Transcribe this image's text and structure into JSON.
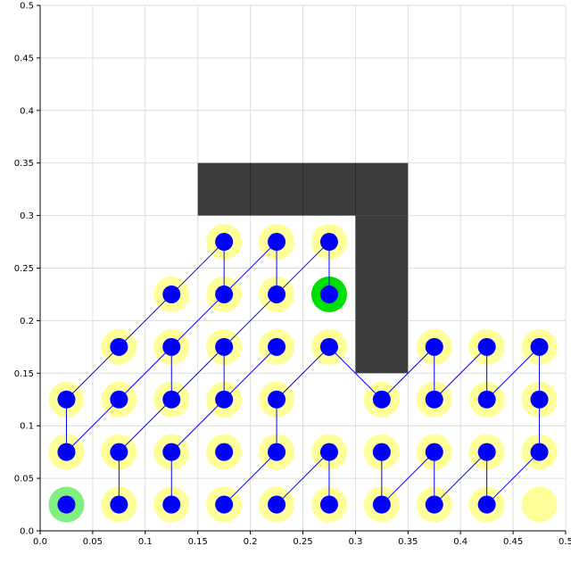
{
  "colors": {
    "obstacle": "#3c3c3c",
    "halo": "#ffff99",
    "node": "#0000ff",
    "edge": "#0000ff",
    "start": "#80ee80",
    "goal": "#00e000",
    "grid": "#dcdcdc"
  },
  "chart_data": {
    "type": "scatter",
    "title": "",
    "xlabel": "",
    "ylabel": "",
    "xlim": [
      0,
      0.5
    ],
    "ylim": [
      0,
      0.5
    ],
    "grid": true,
    "x_ticks": [
      "0.0",
      "0.05",
      "0.1",
      "0.15",
      "0.2",
      "0.25",
      "0.3",
      "0.35",
      "0.4",
      "0.45",
      "0.5"
    ],
    "y_ticks": [
      "0.0",
      "0.05",
      "0.1",
      "0.15",
      "0.2",
      "0.25",
      "0.3",
      "0.35",
      "0.4",
      "0.45",
      "0.5"
    ],
    "x_tick_values": [
      0,
      0.05,
      0.1,
      0.15,
      0.2,
      0.25,
      0.3,
      0.35,
      0.4,
      0.45,
      0.5
    ],
    "y_tick_values": [
      0,
      0.05,
      0.1,
      0.15,
      0.2,
      0.25,
      0.3,
      0.35,
      0.4,
      0.45,
      0.5
    ],
    "obstacles": [
      {
        "x0": 0.15,
        "y0": 0.3,
        "x1": 0.35,
        "y1": 0.35
      },
      {
        "x0": 0.3,
        "y0": 0.15,
        "x1": 0.35,
        "y1": 0.3
      }
    ],
    "halos": [
      [
        0.075,
        0.025
      ],
      [
        0.125,
        0.025
      ],
      [
        0.175,
        0.025
      ],
      [
        0.225,
        0.025
      ],
      [
        0.275,
        0.025
      ],
      [
        0.325,
        0.025
      ],
      [
        0.375,
        0.025
      ],
      [
        0.425,
        0.025
      ],
      [
        0.475,
        0.025
      ],
      [
        0.025,
        0.075
      ],
      [
        0.075,
        0.075
      ],
      [
        0.125,
        0.075
      ],
      [
        0.175,
        0.075
      ],
      [
        0.225,
        0.075
      ],
      [
        0.275,
        0.075
      ],
      [
        0.325,
        0.075
      ],
      [
        0.375,
        0.075
      ],
      [
        0.425,
        0.075
      ],
      [
        0.475,
        0.075
      ],
      [
        0.025,
        0.125
      ],
      [
        0.075,
        0.125
      ],
      [
        0.125,
        0.125
      ],
      [
        0.175,
        0.125
      ],
      [
        0.225,
        0.125
      ],
      [
        0.325,
        0.125
      ],
      [
        0.375,
        0.125
      ],
      [
        0.425,
        0.125
      ],
      [
        0.475,
        0.125
      ],
      [
        0.075,
        0.175
      ],
      [
        0.125,
        0.175
      ],
      [
        0.175,
        0.175
      ],
      [
        0.225,
        0.175
      ],
      [
        0.275,
        0.175
      ],
      [
        0.375,
        0.175
      ],
      [
        0.425,
        0.175
      ],
      [
        0.475,
        0.175
      ],
      [
        0.125,
        0.225
      ],
      [
        0.175,
        0.225
      ],
      [
        0.225,
        0.225
      ],
      [
        0.175,
        0.275
      ],
      [
        0.225,
        0.275
      ],
      [
        0.275,
        0.275
      ]
    ],
    "start": [
      0.025,
      0.025
    ],
    "goal": [
      0.275,
      0.225
    ],
    "nodes": [
      [
        0.025,
        0.025
      ],
      [
        0.075,
        0.025
      ],
      [
        0.125,
        0.025
      ],
      [
        0.175,
        0.025
      ],
      [
        0.225,
        0.025
      ],
      [
        0.275,
        0.025
      ],
      [
        0.325,
        0.025
      ],
      [
        0.375,
        0.025
      ],
      [
        0.425,
        0.025
      ],
      [
        0.025,
        0.075
      ],
      [
        0.075,
        0.075
      ],
      [
        0.125,
        0.075
      ],
      [
        0.175,
        0.075
      ],
      [
        0.225,
        0.075
      ],
      [
        0.275,
        0.075
      ],
      [
        0.325,
        0.075
      ],
      [
        0.375,
        0.075
      ],
      [
        0.425,
        0.075
      ],
      [
        0.475,
        0.075
      ],
      [
        0.025,
        0.125
      ],
      [
        0.075,
        0.125
      ],
      [
        0.125,
        0.125
      ],
      [
        0.175,
        0.125
      ],
      [
        0.225,
        0.125
      ],
      [
        0.325,
        0.125
      ],
      [
        0.375,
        0.125
      ],
      [
        0.425,
        0.125
      ],
      [
        0.475,
        0.125
      ],
      [
        0.075,
        0.175
      ],
      [
        0.125,
        0.175
      ],
      [
        0.175,
        0.175
      ],
      [
        0.225,
        0.175
      ],
      [
        0.275,
        0.175
      ],
      [
        0.375,
        0.175
      ],
      [
        0.425,
        0.175
      ],
      [
        0.475,
        0.175
      ],
      [
        0.125,
        0.225
      ],
      [
        0.175,
        0.225
      ],
      [
        0.225,
        0.225
      ],
      [
        0.275,
        0.225
      ],
      [
        0.175,
        0.275
      ],
      [
        0.225,
        0.275
      ],
      [
        0.275,
        0.275
      ]
    ],
    "edges": [
      [
        [
          0.025,
          0.075
        ],
        [
          0.025,
          0.125
        ]
      ],
      [
        [
          0.025,
          0.125
        ],
        [
          0.075,
          0.175
        ]
      ],
      [
        [
          0.075,
          0.175
        ],
        [
          0.125,
          0.225
        ]
      ],
      [
        [
          0.125,
          0.225
        ],
        [
          0.175,
          0.275
        ]
      ],
      [
        [
          0.025,
          0.075
        ],
        [
          0.075,
          0.125
        ]
      ],
      [
        [
          0.075,
          0.125
        ],
        [
          0.125,
          0.175
        ]
      ],
      [
        [
          0.125,
          0.175
        ],
        [
          0.175,
          0.225
        ]
      ],
      [
        [
          0.175,
          0.225
        ],
        [
          0.225,
          0.275
        ]
      ],
      [
        [
          0.175,
          0.225
        ],
        [
          0.175,
          0.275
        ]
      ],
      [
        [
          0.075,
          0.025
        ],
        [
          0.075,
          0.075
        ]
      ],
      [
        [
          0.075,
          0.075
        ],
        [
          0.125,
          0.125
        ]
      ],
      [
        [
          0.125,
          0.125
        ],
        [
          0.125,
          0.175
        ]
      ],
      [
        [
          0.125,
          0.125
        ],
        [
          0.175,
          0.175
        ]
      ],
      [
        [
          0.175,
          0.175
        ],
        [
          0.225,
          0.225
        ]
      ],
      [
        [
          0.225,
          0.225
        ],
        [
          0.275,
          0.275
        ]
      ],
      [
        [
          0.225,
          0.225
        ],
        [
          0.225,
          0.275
        ]
      ],
      [
        [
          0.275,
          0.225
        ],
        [
          0.275,
          0.275
        ]
      ],
      [
        [
          0.125,
          0.025
        ],
        [
          0.125,
          0.075
        ]
      ],
      [
        [
          0.125,
          0.075
        ],
        [
          0.175,
          0.125
        ]
      ],
      [
        [
          0.175,
          0.125
        ],
        [
          0.175,
          0.175
        ]
      ],
      [
        [
          0.175,
          0.125
        ],
        [
          0.225,
          0.175
        ]
      ],
      [
        [
          0.175,
          0.025
        ],
        [
          0.225,
          0.075
        ]
      ],
      [
        [
          0.225,
          0.075
        ],
        [
          0.225,
          0.125
        ]
      ],
      [
        [
          0.225,
          0.125
        ],
        [
          0.275,
          0.175
        ]
      ],
      [
        [
          0.225,
          0.025
        ],
        [
          0.275,
          0.075
        ]
      ],
      [
        [
          0.275,
          0.075
        ],
        [
          0.275,
          0.025
        ]
      ],
      [
        [
          0.275,
          0.175
        ],
        [
          0.325,
          0.125
        ]
      ],
      [
        [
          0.325,
          0.025
        ],
        [
          0.325,
          0.075
        ]
      ],
      [
        [
          0.325,
          0.025
        ],
        [
          0.375,
          0.075
        ]
      ],
      [
        [
          0.375,
          0.025
        ],
        [
          0.375,
          0.075
        ]
      ],
      [
        [
          0.375,
          0.025
        ],
        [
          0.425,
          0.075
        ]
      ],
      [
        [
          0.425,
          0.025
        ],
        [
          0.425,
          0.075
        ]
      ],
      [
        [
          0.425,
          0.025
        ],
        [
          0.475,
          0.075
        ]
      ],
      [
        [
          0.325,
          0.125
        ],
        [
          0.375,
          0.175
        ]
      ],
      [
        [
          0.375,
          0.125
        ],
        [
          0.375,
          0.175
        ]
      ],
      [
        [
          0.375,
          0.125
        ],
        [
          0.425,
          0.175
        ]
      ],
      [
        [
          0.425,
          0.125
        ],
        [
          0.425,
          0.175
        ]
      ],
      [
        [
          0.425,
          0.125
        ],
        [
          0.475,
          0.175
        ]
      ],
      [
        [
          0.475,
          0.125
        ],
        [
          0.475,
          0.175
        ]
      ],
      [
        [
          0.475,
          0.075
        ],
        [
          0.475,
          0.125
        ]
      ]
    ]
  }
}
